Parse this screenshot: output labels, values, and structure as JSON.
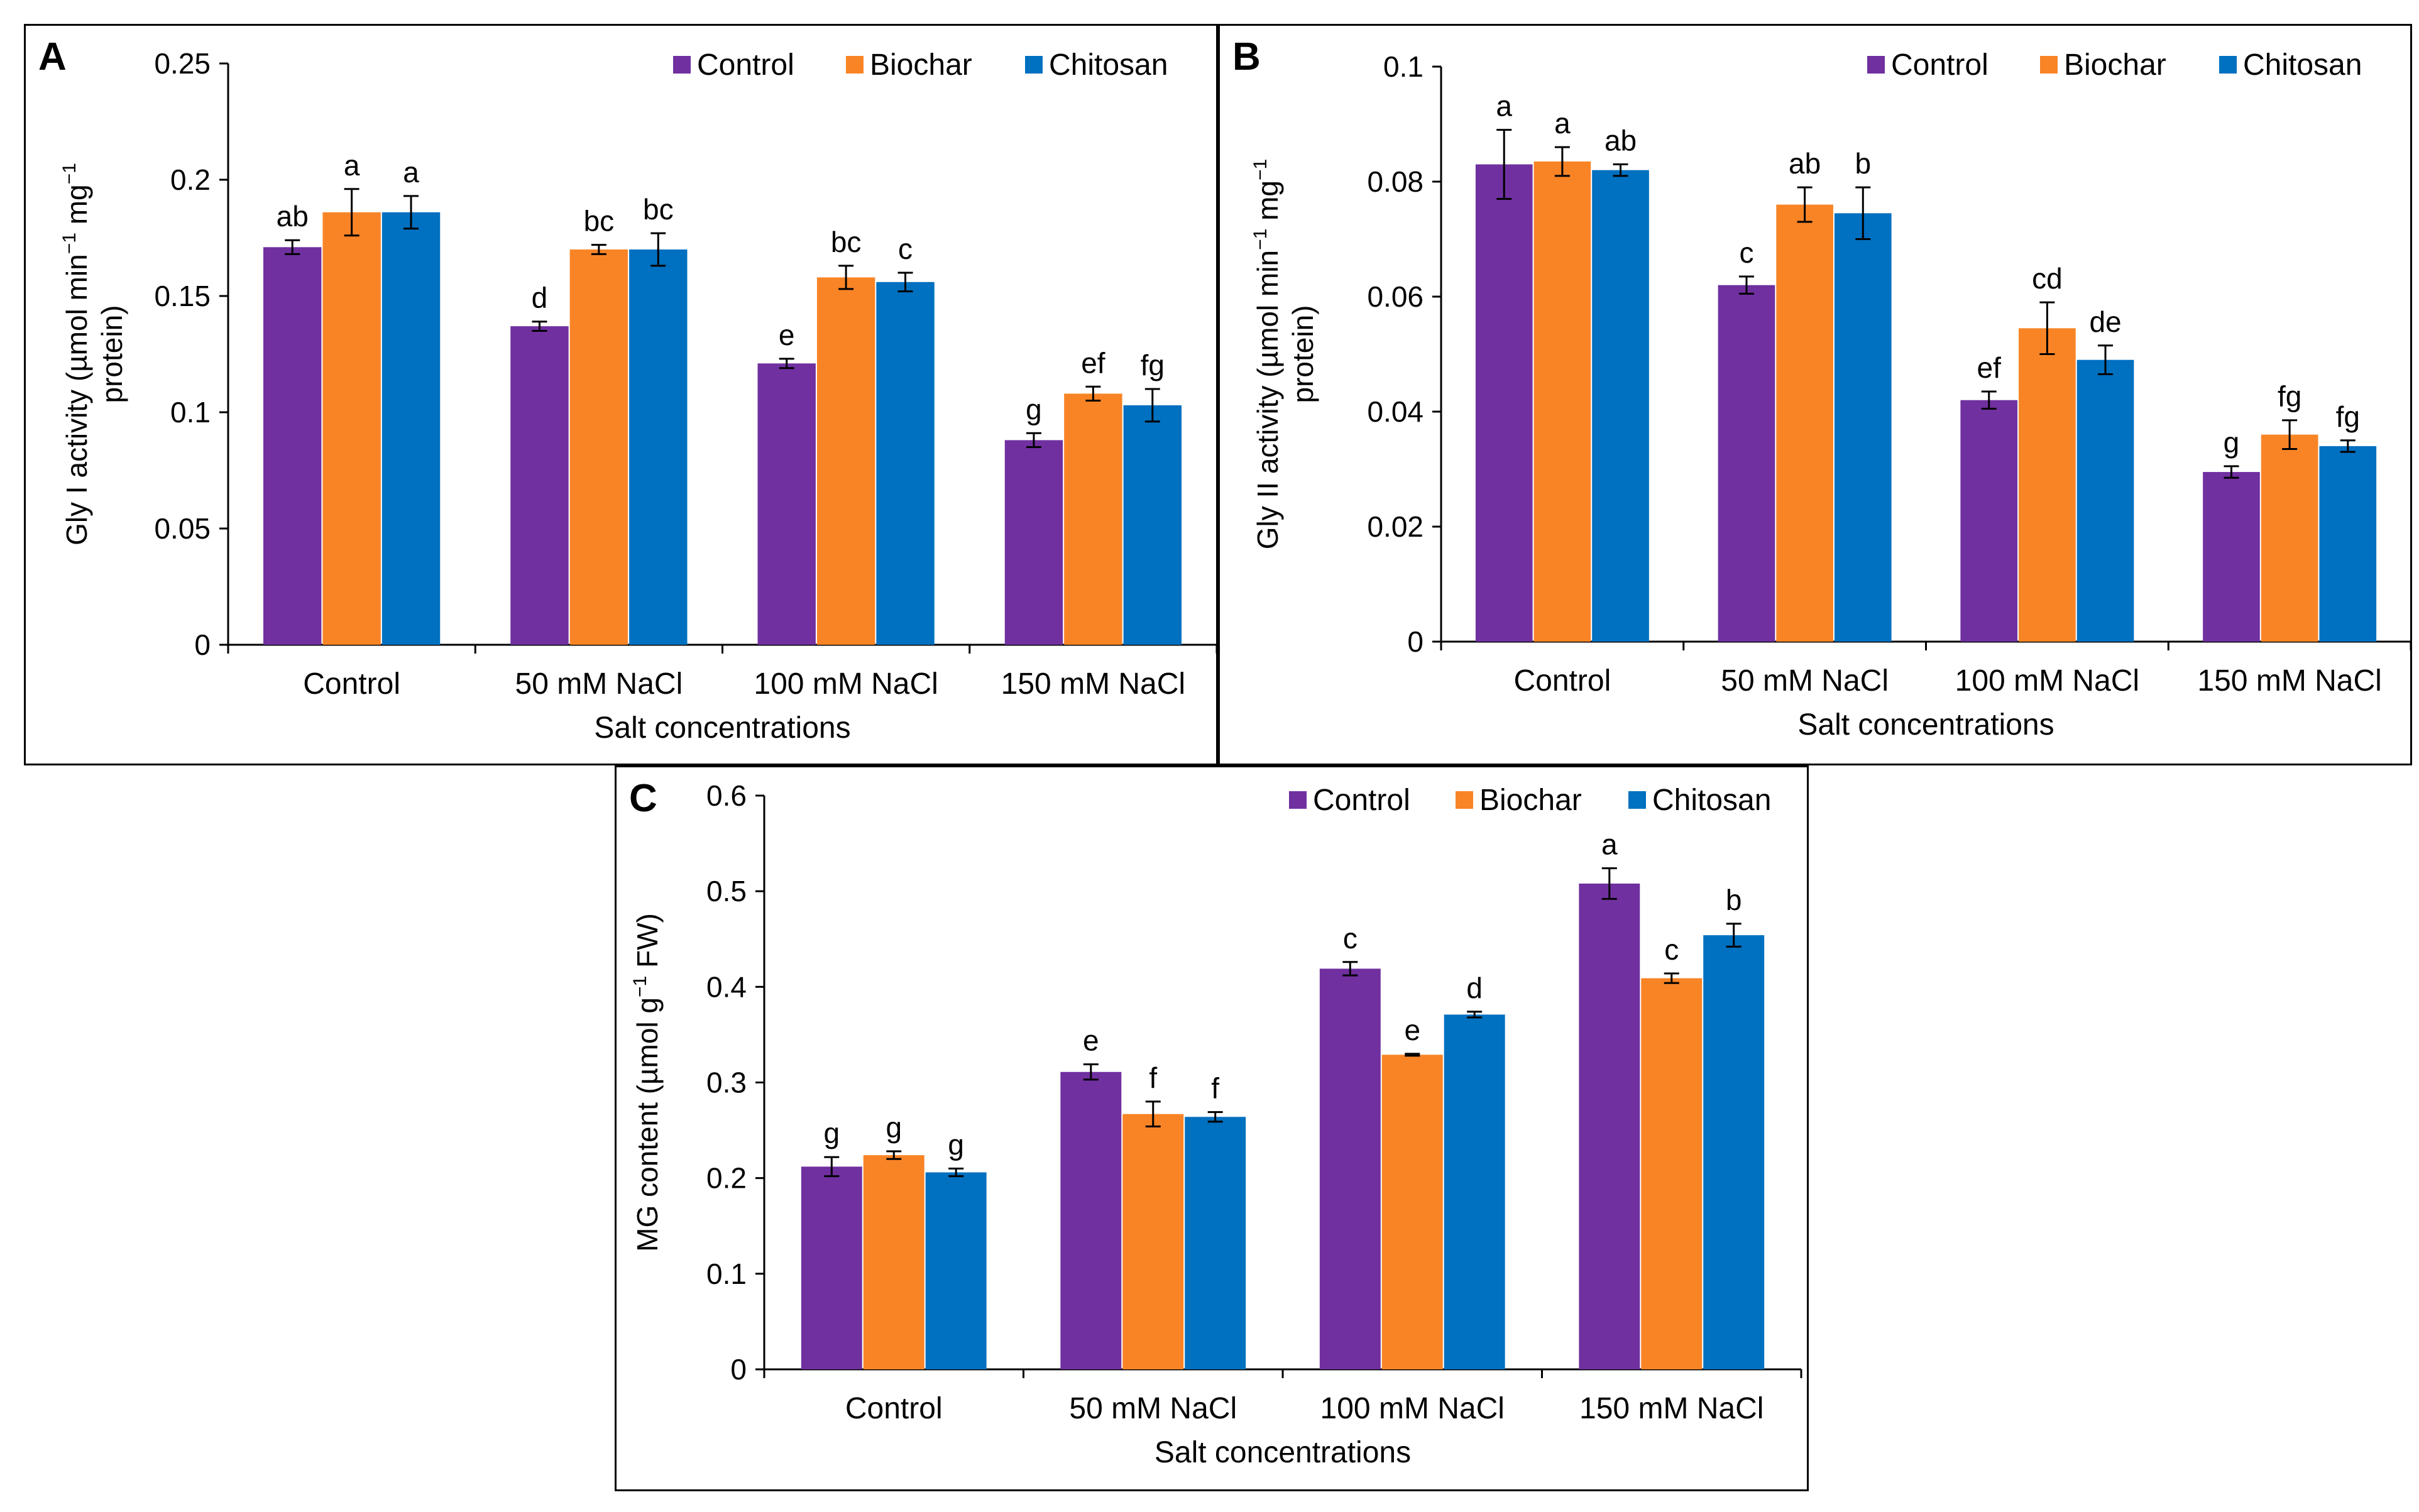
{
  "colors": {
    "control": "#7030A0",
    "biochar": "#F98426",
    "chitosan": "#0070C0"
  },
  "chart_data": [
    {
      "type": "bar",
      "panel_label": "A",
      "categories": [
        "Control",
        "50 mM NaCl",
        "100 mM NaCl",
        "150 mM NaCl"
      ],
      "series": [
        {
          "name": "Control",
          "values": [
            0.171,
            0.137,
            0.121,
            0.088
          ],
          "errors": [
            0.003,
            0.002,
            0.002,
            0.003
          ],
          "letters": [
            "ab",
            "d",
            "e",
            "g"
          ]
        },
        {
          "name": "Biochar",
          "values": [
            0.186,
            0.17,
            0.158,
            0.108
          ],
          "errors": [
            0.01,
            0.002,
            0.005,
            0.003
          ],
          "letters": [
            "a",
            "bc",
            "bc",
            "ef"
          ]
        },
        {
          "name": "Chitosan",
          "values": [
            0.186,
            0.17,
            0.156,
            0.103
          ],
          "errors": [
            0.007,
            0.007,
            0.004,
            0.007
          ],
          "letters": [
            "a",
            "bc",
            "c",
            "fg"
          ]
        }
      ],
      "xlabel": "Salt concentrations",
      "ylabel_lines": [
        "Gly I activity (µmol min",
        "−1",
        " mg",
        "−1",
        "protein)"
      ],
      "ylim": [
        0,
        0.25
      ],
      "yticks": [
        0,
        0.05,
        0.1,
        0.15,
        0.2,
        0.25
      ],
      "ytick_labels": [
        "0",
        "0.05",
        "0.1",
        "0.15",
        "0.2",
        "0.25"
      ],
      "legend": "top-right"
    },
    {
      "type": "bar",
      "panel_label": "B",
      "categories": [
        "Control",
        "50 mM NaCl",
        "100 mM NaCl",
        "150 mM NaCl"
      ],
      "series": [
        {
          "name": "Control",
          "values": [
            0.083,
            0.062,
            0.042,
            0.0295
          ],
          "errors": [
            0.006,
            0.0015,
            0.0015,
            0.001
          ],
          "letters": [
            "a",
            "c",
            "ef",
            "g"
          ]
        },
        {
          "name": "Biochar",
          "values": [
            0.0835,
            0.076,
            0.0545,
            0.036
          ],
          "errors": [
            0.0025,
            0.003,
            0.0045,
            0.0025
          ],
          "letters": [
            "a",
            "ab",
            "cd",
            "fg"
          ]
        },
        {
          "name": "Chitosan",
          "values": [
            0.082,
            0.0745,
            0.049,
            0.034
          ],
          "errors": [
            0.001,
            0.0045,
            0.0025,
            0.001
          ],
          "letters": [
            "ab",
            "b",
            "de",
            "fg"
          ]
        }
      ],
      "xlabel": "Salt concentrations",
      "ylabel_lines": [
        "Gly II activity (µmol min",
        "−1",
        " mg",
        "−1",
        "protein)"
      ],
      "ylim": [
        0,
        0.1
      ],
      "yticks": [
        0,
        0.02,
        0.04,
        0.06,
        0.08,
        0.1
      ],
      "ytick_labels": [
        "0",
        "0.02",
        "0.04",
        "0.06",
        "0.08",
        "0.1"
      ],
      "legend": "top-right"
    },
    {
      "type": "bar",
      "panel_label": "C",
      "categories": [
        "Control",
        "50 mM NaCl",
        "100 mM NaCl",
        "150 mM NaCl"
      ],
      "series": [
        {
          "name": "Control",
          "values": [
            0.212,
            0.311,
            0.419,
            0.508
          ],
          "errors": [
            0.01,
            0.008,
            0.007,
            0.016
          ],
          "letters": [
            "g",
            "e",
            "c",
            "a"
          ]
        },
        {
          "name": "Biochar",
          "values": [
            0.224,
            0.267,
            0.329,
            0.409
          ],
          "errors": [
            0.004,
            0.013,
            0.001,
            0.005
          ],
          "letters": [
            "g",
            "f",
            "e",
            "c"
          ]
        },
        {
          "name": "Chitosan",
          "values": [
            0.206,
            0.264,
            0.371,
            0.454
          ],
          "errors": [
            0.004,
            0.005,
            0.003,
            0.012
          ],
          "letters": [
            "g",
            "f",
            "d",
            "b"
          ]
        }
      ],
      "xlabel": "Salt concentrations",
      "ylabel_lines": [
        "MG content (µmol g",
        "−1",
        " FW)"
      ],
      "ylim": [
        0,
        0.6
      ],
      "yticks": [
        0,
        0.1,
        0.2,
        0.3,
        0.4,
        0.5,
        0.6
      ],
      "ytick_labels": [
        "0",
        "0.1",
        "0.2",
        "0.3",
        "0.4",
        "0.5",
        "0.6"
      ],
      "legend": "top-right"
    }
  ]
}
